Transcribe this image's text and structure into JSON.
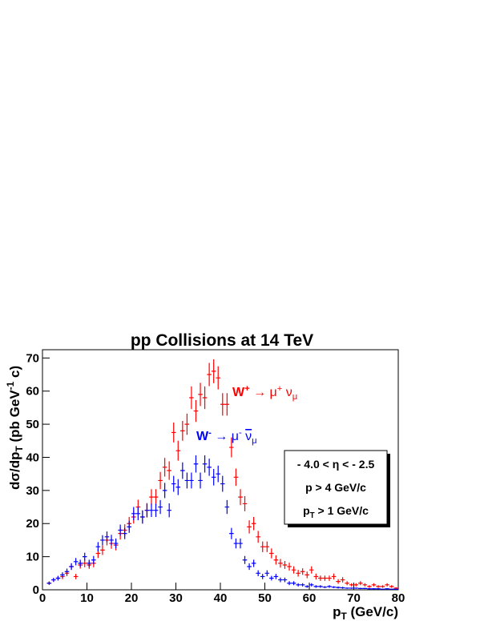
{
  "chart_data": {
    "type": "errorbar",
    "title": "pp Collisions at 14 TeV",
    "x_label": [
      "p",
      "T",
      " (GeV/c)"
    ],
    "y_label": [
      "dσ/dp",
      "T",
      " (pb GeV",
      "-1",
      " c)"
    ],
    "xlim": [
      0,
      80
    ],
    "xticks": [
      0,
      10,
      20,
      30,
      40,
      50,
      60,
      70,
      80
    ],
    "ylim": [
      0,
      72.5
    ],
    "yticks": [
      0,
      10,
      20,
      30,
      40,
      50,
      60,
      70
    ],
    "x": [
      1.5,
      2.5,
      3.5,
      4.5,
      5.5,
      6.5,
      7.5,
      8.5,
      9.5,
      10.5,
      11.5,
      12.5,
      13.5,
      14.5,
      15.5,
      16.5,
      17.5,
      18.5,
      19.5,
      20.5,
      21.5,
      22.5,
      23.5,
      24.5,
      25.5,
      26.5,
      27.5,
      28.5,
      29.5,
      30.5,
      31.5,
      32.5,
      33.5,
      34.5,
      35.5,
      36.5,
      37.5,
      38.5,
      39.5,
      40.5,
      41.5,
      42.5,
      43.5,
      44.5,
      45.5,
      46.5,
      47.5,
      48.5,
      49.5,
      50.5,
      51.5,
      52.5,
      53.5,
      54.5,
      55.5,
      56.5,
      57.5,
      58.5,
      59.5,
      60.5,
      61.5,
      62.5,
      63.5,
      64.5,
      65.5,
      66.5,
      67.5,
      68.5,
      69.5,
      70.5,
      71.5,
      72.5,
      73.5,
      74.5,
      75.5,
      76.5,
      77.5,
      78.5,
      79.5
    ],
    "series": [
      {
        "name": [
          "W",
          "+",
          " → μ",
          "+",
          " ν",
          "μ"
        ],
        "color": "#ff0000",
        "values": [
          2,
          3,
          3.5,
          4,
          5,
          7,
          4,
          7.5,
          8,
          7.5,
          8,
          11,
          12,
          15,
          14,
          13.5,
          17,
          18,
          20,
          22,
          25,
          22,
          24,
          28,
          28,
          33,
          37,
          36,
          47.5,
          42,
          48,
          50,
          58,
          54,
          59,
          58,
          65,
          66,
          64,
          56,
          56,
          43,
          34,
          28,
          26,
          19,
          20,
          16,
          13,
          13,
          11,
          9,
          8,
          7.5,
          7,
          6,
          5,
          5.5,
          4.5,
          6,
          4,
          3.5,
          3.5,
          3.5,
          4,
          2.5,
          3,
          2,
          1.5,
          1.5,
          2,
          1.5,
          1,
          1.5,
          1,
          1,
          1.5,
          1,
          0.5
        ],
        "errors": [
          0.5,
          0.6,
          0.7,
          0.8,
          0.9,
          1,
          0.8,
          1.1,
          1.2,
          1.2,
          1.2,
          1.4,
          1.5,
          1.6,
          1.6,
          1.6,
          1.8,
          1.8,
          2,
          2,
          2.2,
          2,
          2.2,
          2.4,
          2.4,
          2.6,
          2.8,
          2.8,
          3,
          3,
          3,
          3.2,
          3.4,
          3.3,
          3.5,
          3.4,
          3.5,
          3.6,
          3.5,
          3.4,
          3.4,
          3,
          2.6,
          2.4,
          2.3,
          2,
          2,
          1.8,
          1.6,
          1.6,
          1.5,
          1.4,
          1.3,
          1.2,
          1.2,
          1.1,
          1,
          1,
          1,
          1.1,
          0.9,
          0.8,
          0.8,
          0.8,
          0.9,
          0.7,
          0.8,
          0.6,
          0.5,
          0.5,
          0.6,
          0.5,
          0.4,
          0.5,
          0.4,
          0.4,
          0.5,
          0.4,
          0.3
        ]
      },
      {
        "name": [
          "W",
          "-",
          " → μ",
          "-",
          " ",
          "ν",
          "μ"
        ],
        "color": "#0000ff",
        "values": [
          2,
          3,
          3.5,
          4.5,
          5.5,
          7,
          8.5,
          8,
          10,
          8,
          9,
          13,
          15,
          16,
          15,
          14,
          18,
          17,
          19,
          23,
          23,
          22,
          24,
          24,
          24,
          25,
          30,
          24,
          32,
          31,
          36,
          33,
          33,
          38,
          33,
          38,
          37,
          34,
          35,
          32,
          25,
          17,
          14,
          14,
          9,
          7,
          8,
          5,
          4,
          5,
          3.5,
          4,
          3,
          3,
          2,
          2,
          1.5,
          1.5,
          1,
          1.5,
          1,
          1,
          0.8,
          1,
          0.8,
          0.7,
          0.6,
          0.5,
          0.5,
          0.5,
          0.4,
          0.4,
          0.3,
          0.3,
          0.3,
          0.2,
          0.3,
          0.2,
          0.2
        ],
        "errors": [
          0.5,
          0.6,
          0.7,
          0.8,
          0.9,
          1,
          1.1,
          1.1,
          1.2,
          1.1,
          1.2,
          1.4,
          1.5,
          1.6,
          1.6,
          1.5,
          1.7,
          1.7,
          1.8,
          2,
          2,
          2,
          2,
          2,
          2,
          2.1,
          2.3,
          2.1,
          2.4,
          2.4,
          2.5,
          2.4,
          2.4,
          2.6,
          2.4,
          2.6,
          2.6,
          2.5,
          2.5,
          2.4,
          2.1,
          1.7,
          1.5,
          1.5,
          1.2,
          1,
          1.1,
          0.9,
          0.8,
          0.9,
          0.7,
          0.8,
          0.7,
          0.7,
          0.6,
          0.6,
          0.5,
          0.5,
          0.4,
          0.5,
          0.4,
          0.4,
          0.3,
          0.4,
          0.3,
          0.3,
          0.3,
          0.2,
          0.2,
          0.2,
          0.2,
          0.2,
          0.2,
          0.2,
          0.2,
          0.1,
          0.2,
          0.1,
          0.1
        ]
      }
    ],
    "box_text": [
      [
        "- 4.0 < η < - 2.5"
      ],
      [
        "p > 4 GeV/c"
      ],
      [
        "p",
        "T",
        " > 1 GeV/c"
      ]
    ]
  }
}
